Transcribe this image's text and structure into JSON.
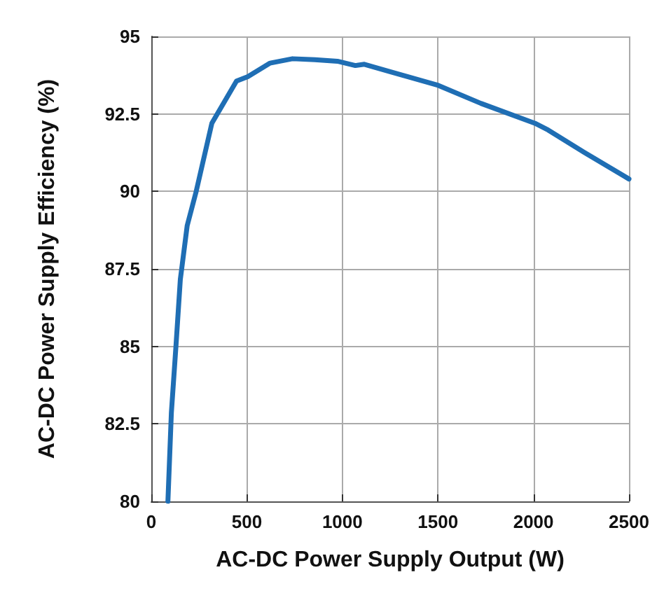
{
  "chart_data": {
    "type": "line",
    "xlabel": "AC-DC Power Supply Output (W)",
    "ylabel": "AC-DC Power Supply Efficiency (%)",
    "x": [
      87,
      105,
      129,
      152,
      188,
      235,
      317,
      446,
      505,
      622,
      739,
      856,
      974,
      1068,
      1115,
      1256,
      1502,
      1725,
      2007,
      2077,
      2265,
      2500
    ],
    "series": [
      {
        "color": "#1f6eb4",
        "values": [
          80,
          82.85,
          85.0,
          87.16,
          88.9,
          90.0,
          92.2,
          93.56,
          93.7,
          94.14,
          94.28,
          94.25,
          94.2,
          94.06,
          94.1,
          93.85,
          93.42,
          92.84,
          92.2,
          91.98,
          91.26,
          90.4
        ]
      }
    ],
    "xlim": [
      0,
      2500
    ],
    "xticks": [
      0,
      500,
      1000,
      1500,
      2000,
      2500
    ],
    "ylim": [
      80,
      95
    ],
    "yticks": [
      80,
      82.5,
      85,
      87.5,
      90,
      92.5,
      95
    ],
    "grid": true,
    "marker": "none",
    "line_style": "solid"
  }
}
